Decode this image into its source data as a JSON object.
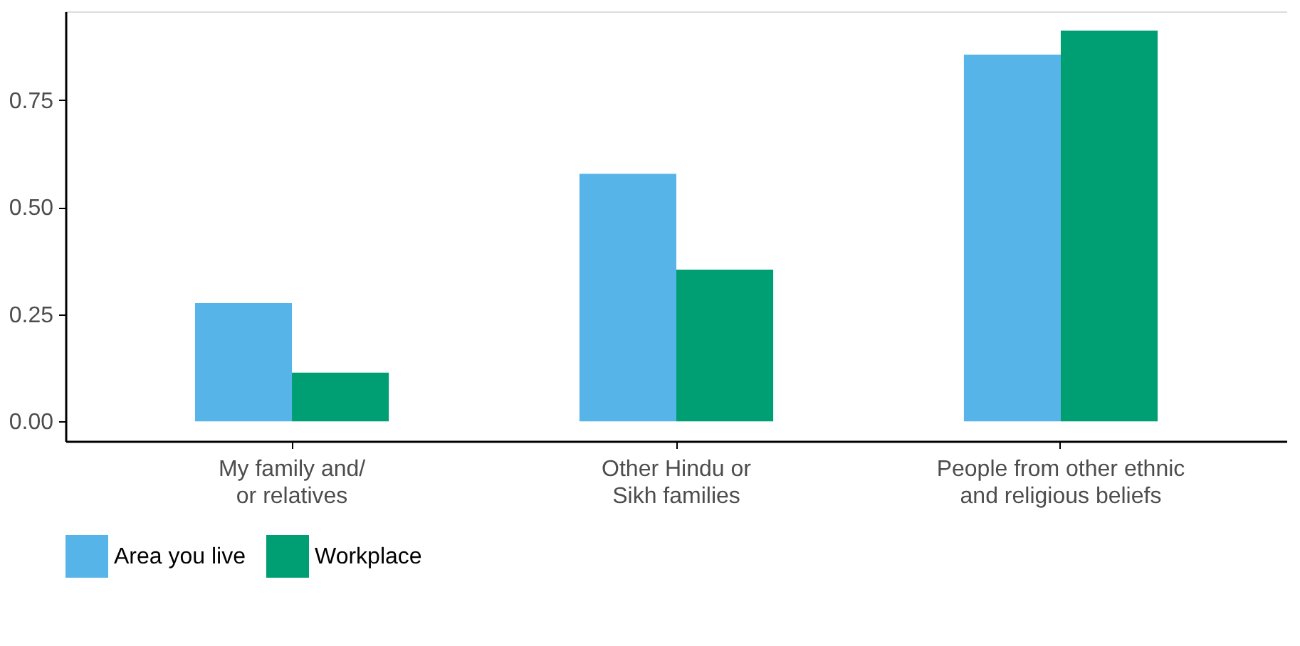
{
  "chart_data": {
    "type": "bar",
    "categories": [
      "My family and/\nor relatives",
      "Other Hindu or\nSikh families",
      "People from other ethnic\nand religious beliefs"
    ],
    "series": [
      {
        "name": "Area you live",
        "color": "#56b4e9",
        "values": [
          0.276,
          0.578,
          0.856
        ]
      },
      {
        "name": "Workplace",
        "color": "#009e73",
        "values": [
          0.114,
          0.354,
          0.912
        ]
      }
    ],
    "ylim": [
      -0.046,
      0.957
    ],
    "yticks": [
      {
        "value": 0,
        "label": "0.00"
      },
      {
        "value": 0.25,
        "label": "0.25"
      },
      {
        "value": 0.5,
        "label": "0.50"
      },
      {
        "value": 0.75,
        "label": "0.75"
      }
    ],
    "grid": false,
    "legend": "bottom"
  }
}
